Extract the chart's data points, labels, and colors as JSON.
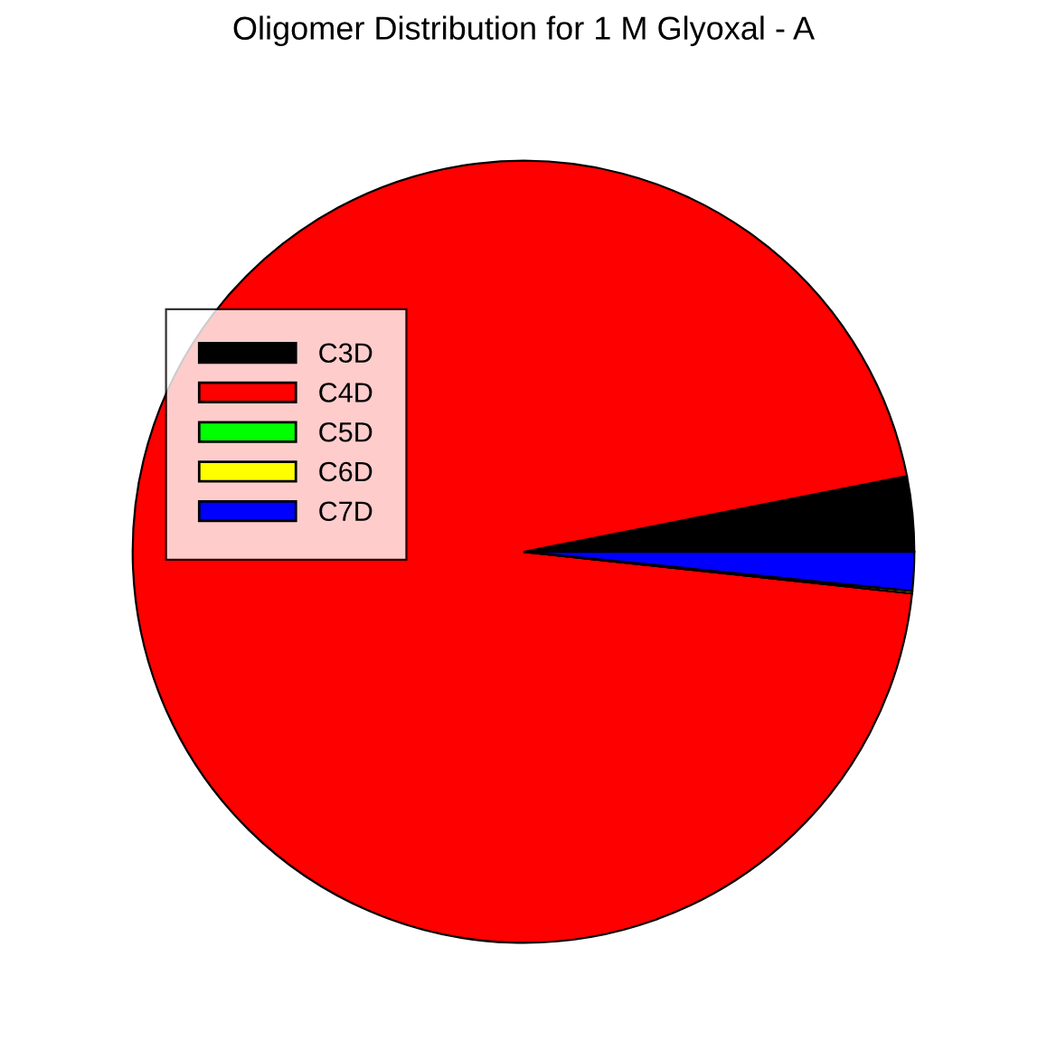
{
  "chart_data": {
    "type": "pie",
    "title": "Oligomer Distribution for 1 M Glyoxal - A",
    "categories": [
      "C3D",
      "C4D",
      "C5D",
      "C6D",
      "C7D"
    ],
    "values": [
      3.1,
      95.2,
      0,
      0.1,
      1.6
    ],
    "colors": [
      "#000000",
      "#ff0000",
      "#00ff00",
      "#ffff00",
      "#0000ff"
    ],
    "legend": "left"
  }
}
